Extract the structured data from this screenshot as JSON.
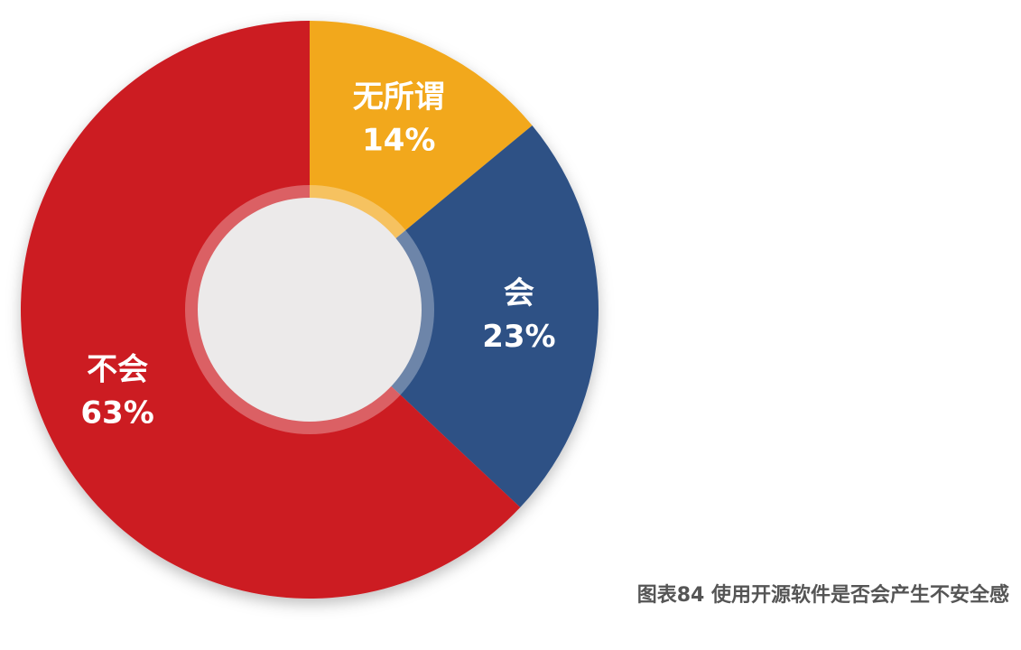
{
  "chart_data": {
    "type": "donut",
    "title": "图表84 使用开源软件是否会产生不安全感",
    "categories": [
      "无所谓",
      "会",
      "不会"
    ],
    "values": [
      14,
      23,
      63
    ],
    "value_labels": [
      "14%",
      "23%",
      "63%"
    ],
    "colors": [
      "#f2a81d",
      "#2f5185",
      "#cc1b24"
    ]
  }
}
